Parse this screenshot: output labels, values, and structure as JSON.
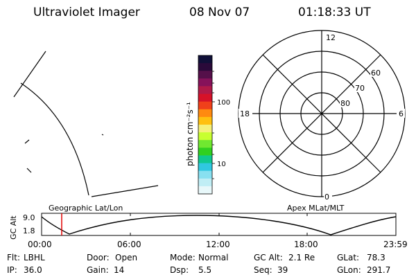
{
  "header": {
    "title": "Ultraviolet Imager",
    "date": "08 Nov 07",
    "time": "01:18:33 UT"
  },
  "colorbar": {
    "label": "photon cm⁻²s⁻¹",
    "ticks": [
      "100",
      "10"
    ],
    "colors": [
      "#101038",
      "#2a0a3a",
      "#55104a",
      "#86125a",
      "#b01a48",
      "#d61228",
      "#f0401a",
      "#ff8a10",
      "#ffc010",
      "#f5f07a",
      "#c8ff30",
      "#70e830",
      "#30d020",
      "#10c890",
      "#30c8e0",
      "#88e0f0",
      "#c0eef5",
      "#e8f8fa"
    ]
  },
  "plot_labels": {
    "left_panel": "Geographic Lat/Lon",
    "right_panel": "Apex MLat/MLT"
  },
  "polar": {
    "mlt_labels": [
      "12",
      "18",
      "6",
      "0"
    ],
    "mlat_labels": [
      "60",
      "70",
      "80"
    ]
  },
  "alt_plot": {
    "ylabel": "GC Alt",
    "ytick_top": "9.0",
    "ytick_bottom": "1.8",
    "xticks": [
      "00:00",
      "06:00",
      "12:00",
      "18:00",
      "23:59"
    ]
  },
  "status": {
    "row1": [
      {
        "label": "Flt:",
        "value": "LBHL"
      },
      {
        "label": "Door:",
        "value": "Open"
      },
      {
        "label": "Mode:",
        "value": "Normal"
      },
      {
        "label": "GC Alt:",
        "value": "2.1 Re"
      },
      {
        "label": "GLat:",
        "value": "78.3"
      }
    ],
    "row2": [
      {
        "label": "IP:",
        "value": "36.0"
      },
      {
        "label": "Gain:",
        "value": "14"
      },
      {
        "label": "Dsp:",
        "value": "5.5"
      },
      {
        "label": "Seq:",
        "value": "39"
      },
      {
        "label": "GLon:",
        "value": "291.7"
      }
    ]
  },
  "colors": {
    "line": "#000000",
    "cursor": "#e00000"
  }
}
